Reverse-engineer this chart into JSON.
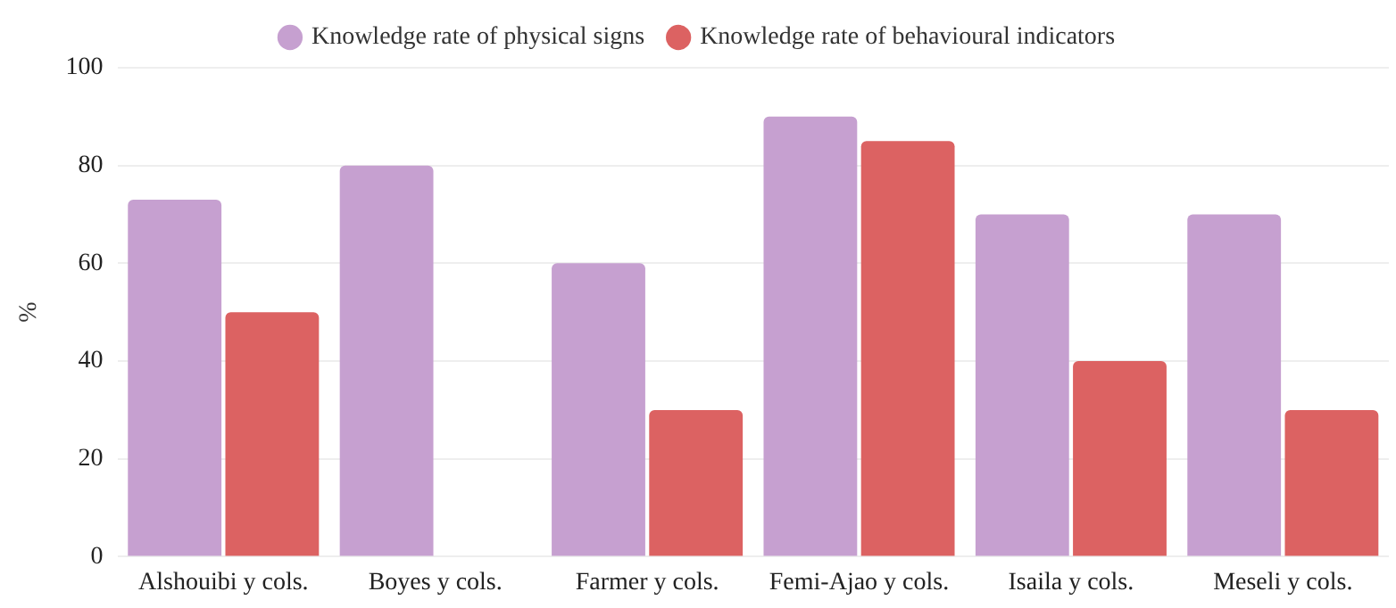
{
  "chart_data": {
    "type": "bar",
    "ylabel": "%",
    "categories": [
      "Alshouibi y cols.",
      "Boyes y cols.",
      "Farmer y cols.",
      "Femi-Ajao y cols.",
      "Isaila y cols.",
      "Meseli y cols."
    ],
    "series": [
      {
        "name": "Knowledge rate of physical signs",
        "color": "#c6a0d0",
        "values": [
          73,
          80,
          60,
          90,
          70,
          70
        ]
      },
      {
        "name": "Knowledge rate of behavioural indicators",
        "color": "#dc6262",
        "values": [
          50,
          null,
          30,
          85,
          40,
          30
        ]
      }
    ],
    "ylim": [
      0,
      100
    ],
    "yticks": [
      0,
      20,
      40,
      60,
      80,
      100
    ],
    "grid": "y",
    "legend": "top"
  }
}
